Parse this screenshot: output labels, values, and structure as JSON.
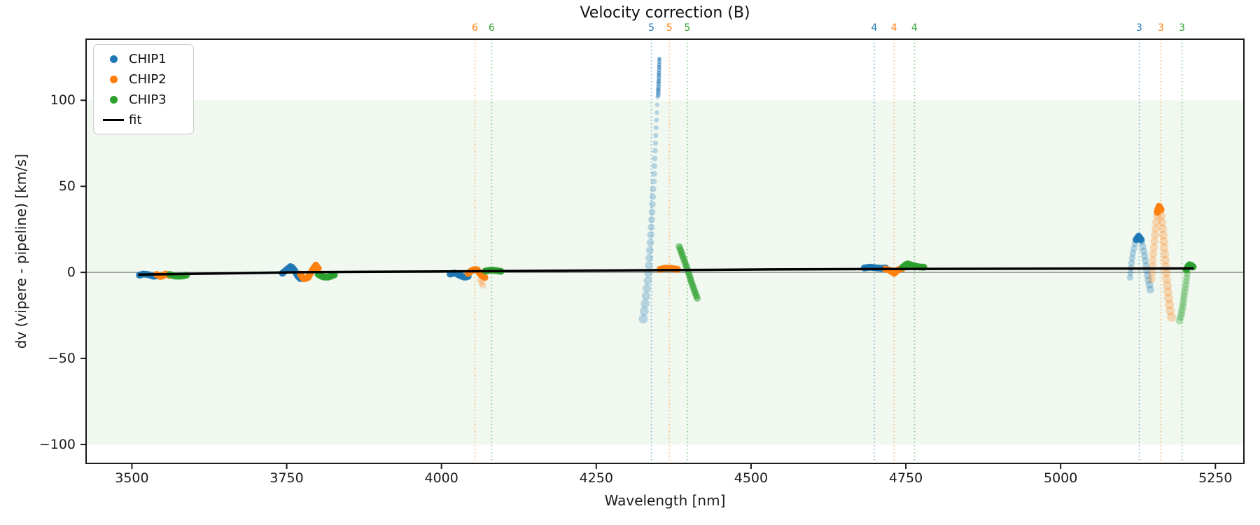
{
  "figure": {
    "title": "Velocity correction (B)"
  },
  "chart_data": {
    "type": "scatter",
    "title": "Velocity correction (B)",
    "xlabel": "Wavelength [nm]",
    "ylabel": "dv (vipere - pipeline) [km/s]",
    "xlim": [
      3426,
      5296
    ],
    "ylim": [
      -111,
      135.5
    ],
    "xticks": [
      3500,
      3750,
      4000,
      4250,
      4500,
      4750,
      5000,
      5250
    ],
    "yticks": [
      -100,
      -50,
      0,
      50,
      100
    ],
    "grid": false,
    "legend_position": "upper left",
    "colors": {
      "CHIP1": "#1f77b4",
      "CHIP2": "#ff7f0e",
      "CHIP3": "#2ca02c",
      "fit": "#000000"
    },
    "shaded_band": {
      "ymin": -100,
      "ymax": 100,
      "color": "#2ca02c",
      "opacity": 0.07
    },
    "zero_line": {
      "y": 0,
      "color": "#808080"
    },
    "legend": [
      {
        "label": "CHIP1",
        "marker": "dot",
        "color": "#1f77b4"
      },
      {
        "label": "CHIP2",
        "marker": "dot",
        "color": "#ff7f0e"
      },
      {
        "label": "CHIP3",
        "marker": "dot",
        "color": "#2ca02c"
      },
      {
        "label": "fit",
        "marker": "line",
        "color": "#000000"
      }
    ],
    "fit_line": {
      "color": "#000000",
      "points": [
        [
          3510,
          -1.3
        ],
        [
          3770,
          0.1
        ],
        [
          4360,
          1.3
        ],
        [
          4530,
          1.7
        ],
        [
          4745,
          2.0
        ],
        [
          5215,
          2.3
        ]
      ]
    },
    "order_markers": [
      {
        "order": "6",
        "chip": "CHIP2",
        "wavelength": 4054
      },
      {
        "order": "6",
        "chip": "CHIP3",
        "wavelength": 4081
      },
      {
        "order": "5",
        "chip": "CHIP1",
        "wavelength": 4339
      },
      {
        "order": "5",
        "chip": "CHIP2",
        "wavelength": 4368
      },
      {
        "order": "5",
        "chip": "CHIP3",
        "wavelength": 4397
      },
      {
        "order": "4",
        "chip": "CHIP1",
        "wavelength": 4699
      },
      {
        "order": "4",
        "chip": "CHIP2",
        "wavelength": 4731
      },
      {
        "order": "4",
        "chip": "CHIP3",
        "wavelength": 4764
      },
      {
        "order": "3",
        "chip": "CHIP1",
        "wavelength": 5127
      },
      {
        "order": "3",
        "chip": "CHIP2",
        "wavelength": 5162
      },
      {
        "order": "3",
        "chip": "CHIP3",
        "wavelength": 5196
      }
    ],
    "segments": [
      {
        "chip": "CHIP1",
        "alpha": 0.95,
        "r": [
          5,
          5
        ],
        "step": 3,
        "pts": [
          [
            3512,
            -1.6
          ],
          [
            3519,
            -0.9
          ],
          [
            3527,
            -1.3
          ],
          [
            3535,
            -2.3
          ],
          [
            3541,
            -2.0
          ]
        ]
      },
      {
        "chip": "CHIP2",
        "alpha": 0.95,
        "r": [
          5,
          5
        ],
        "step": 3,
        "pts": [
          [
            3540,
            -1.2
          ],
          [
            3547,
            -2.6
          ],
          [
            3554,
            -0.9
          ],
          [
            3561,
            -1.8
          ]
        ]
      },
      {
        "chip": "CHIP3",
        "alpha": 0.95,
        "r": [
          5,
          5
        ],
        "step": 3,
        "pts": [
          [
            3561,
            -1.2
          ],
          [
            3570,
            -2.2
          ],
          [
            3580,
            -2.2
          ],
          [
            3588,
            -1.6
          ]
        ]
      },
      {
        "chip": "CHIP1",
        "alpha": 0.95,
        "r": [
          5,
          5
        ],
        "step": 3,
        "pts": [
          [
            3743,
            -0.5
          ],
          [
            3750,
            1.6
          ],
          [
            3757,
            3.6
          ],
          [
            3763,
            1.0
          ],
          [
            3768,
            -2.2
          ],
          [
            3772,
            -3.6
          ]
        ]
      },
      {
        "chip": "CHIP2",
        "alpha": 0.95,
        "r": [
          5,
          5
        ],
        "step": 3,
        "pts": [
          [
            3772,
            -1.0
          ],
          [
            3777,
            -3.8
          ],
          [
            3784,
            -3.2
          ],
          [
            3791,
            1.0
          ],
          [
            3797,
            4.2
          ],
          [
            3801,
            2.2
          ]
        ]
      },
      {
        "chip": "CHIP3",
        "alpha": 0.95,
        "r": [
          5,
          5
        ],
        "step": 3,
        "pts": [
          [
            3801,
            -1.2
          ],
          [
            3809,
            -2.7
          ],
          [
            3818,
            -2.7
          ],
          [
            3827,
            -1.4
          ]
        ]
      },
      {
        "chip": "CHIP1",
        "alpha": 0.95,
        "r": [
          5,
          5
        ],
        "step": 3,
        "pts": [
          [
            4014,
            -1.0
          ],
          [
            4022,
            -0.3
          ],
          [
            4030,
            -1.9
          ],
          [
            4038,
            -2.9
          ],
          [
            4043,
            -2.3
          ]
        ]
      },
      {
        "chip": "CHIP2",
        "alpha": 0.95,
        "r": [
          5,
          5
        ],
        "step": 3,
        "pts": [
          [
            4043,
            -0.6
          ],
          [
            4050,
            1.4
          ],
          [
            4057,
            1.8
          ],
          [
            4064,
            -1.6
          ],
          [
            4070,
            -3.0
          ]
        ]
      },
      {
        "chip": "CHIP2",
        "alpha": 0.25,
        "r": [
          4,
          5
        ],
        "step": 8,
        "pts": [
          [
            4062,
            -4.5
          ],
          [
            4067,
            -7.5
          ]
        ]
      },
      {
        "chip": "CHIP3",
        "alpha": 0.95,
        "r": [
          5,
          5
        ],
        "step": 3,
        "pts": [
          [
            4071,
            0.8
          ],
          [
            4080,
            1.4
          ],
          [
            4089,
            1.0
          ],
          [
            4096,
            0.6
          ]
        ]
      },
      {
        "chip": "CHIP1",
        "alpha": 0.28,
        "r": [
          2.5,
          6.5
        ],
        "step": 11,
        "pts": [
          [
            4352,
            124
          ],
          [
            4348,
            95
          ],
          [
            4344,
            62
          ],
          [
            4339,
            28
          ],
          [
            4334,
            -2
          ],
          [
            4329,
            -18
          ],
          [
            4326,
            -27
          ]
        ]
      },
      {
        "chip": "CHIP1",
        "alpha": 0.5,
        "r": [
          3,
          3.5
        ],
        "step": 4,
        "pts": [
          [
            4352,
            124
          ],
          [
            4351,
            112
          ],
          [
            4350,
            103
          ]
        ]
      },
      {
        "chip": "CHIP2",
        "alpha": 0.95,
        "r": [
          5,
          5
        ],
        "step": 3,
        "pts": [
          [
            4353,
            1.8
          ],
          [
            4360,
            2.4
          ],
          [
            4370,
            2.4
          ],
          [
            4381,
            1.8
          ]
        ]
      },
      {
        "chip": "CHIP3",
        "alpha": 0.55,
        "r": [
          5,
          5
        ],
        "step": 4,
        "pts": [
          [
            4384,
            15
          ],
          [
            4391,
            8
          ],
          [
            4398,
            1
          ],
          [
            4404,
            -6
          ],
          [
            4409,
            -11
          ],
          [
            4413,
            -15
          ]
        ]
      },
      {
        "chip": "CHIP1",
        "alpha": 0.95,
        "r": [
          5,
          5
        ],
        "step": 3,
        "pts": [
          [
            4683,
            2.6
          ],
          [
            4692,
            3.0
          ],
          [
            4703,
            2.6
          ],
          [
            4711,
            2.4
          ],
          [
            4717,
            2.6
          ]
        ]
      },
      {
        "chip": "CHIP2",
        "alpha": 0.95,
        "r": [
          5,
          5
        ],
        "step": 3,
        "pts": [
          [
            4717,
            2.0
          ],
          [
            4724,
            1.2
          ],
          [
            4731,
            -0.6
          ],
          [
            4738,
            1.6
          ],
          [
            4745,
            2.4
          ]
        ]
      },
      {
        "chip": "CHIP3",
        "alpha": 0.95,
        "r": [
          5,
          5
        ],
        "step": 3,
        "pts": [
          [
            4745,
            3.0
          ],
          [
            4752,
            5.0
          ],
          [
            4760,
            4.2
          ],
          [
            4770,
            3.2
          ],
          [
            4779,
            3.0
          ]
        ]
      },
      {
        "chip": "CHIP1",
        "alpha": 0.3,
        "r": [
          4.5,
          5.5
        ],
        "step": 7,
        "pts": [
          [
            5112,
            -3
          ],
          [
            5114,
            4
          ],
          [
            5117,
            12
          ],
          [
            5121,
            18
          ],
          [
            5126,
            21
          ],
          [
            5131,
            18
          ],
          [
            5135,
            11
          ],
          [
            5139,
            2
          ],
          [
            5142,
            -5
          ],
          [
            5145,
            -10
          ]
        ]
      },
      {
        "chip": "CHIP1",
        "alpha": 0.95,
        "r": [
          5,
          5
        ],
        "step": 3,
        "pts": [
          [
            5122,
            19
          ],
          [
            5126,
            21
          ],
          [
            5130,
            19
          ]
        ]
      },
      {
        "chip": "CHIP2",
        "alpha": 0.28,
        "r": [
          5.5,
          6.5
        ],
        "step": 9,
        "pts": [
          [
            5147,
            -4
          ],
          [
            5149,
            8
          ],
          [
            5152,
            20
          ],
          [
            5155,
            31
          ],
          [
            5158,
            38
          ],
          [
            5162,
            36
          ],
          [
            5165,
            26
          ],
          [
            5168,
            12
          ],
          [
            5171,
            -3
          ],
          [
            5174,
            -14
          ],
          [
            5177,
            -22
          ],
          [
            5179,
            -26
          ]
        ]
      },
      {
        "chip": "CHIP2",
        "alpha": 0.95,
        "r": [
          5,
          5
        ],
        "step": 3,
        "pts": [
          [
            5156,
            35
          ],
          [
            5159,
            38.5
          ],
          [
            5162,
            36.5
          ]
        ]
      },
      {
        "chip": "CHIP3",
        "alpha": 0.3,
        "r": [
          5,
          5.5
        ],
        "step": 5,
        "pts": [
          [
            5205,
            1
          ],
          [
            5203,
            -5
          ],
          [
            5200,
            -12
          ],
          [
            5198,
            -18
          ],
          [
            5195,
            -24
          ],
          [
            5192,
            -28
          ]
        ]
      },
      {
        "chip": "CHIP3",
        "alpha": 0.95,
        "r": [
          5,
          5
        ],
        "step": 3,
        "pts": [
          [
            5203,
            1.5
          ],
          [
            5207,
            4.5
          ],
          [
            5211,
            4.2
          ],
          [
            5214,
            3.2
          ]
        ]
      }
    ]
  }
}
